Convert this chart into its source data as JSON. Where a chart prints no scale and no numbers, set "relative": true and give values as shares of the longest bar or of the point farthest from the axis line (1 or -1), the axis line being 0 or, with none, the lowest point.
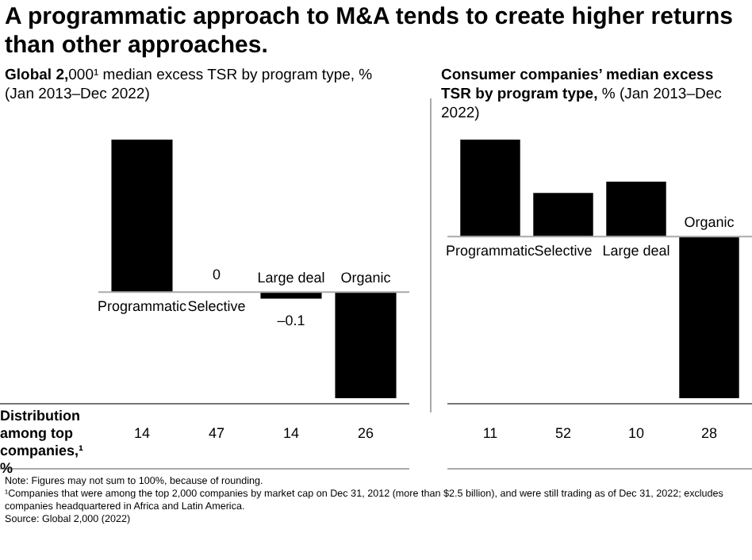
{
  "chart_data": [
    {
      "type": "bar",
      "title": "A programmatic approach to M&A tends to create higher returns than other approaches.",
      "subtitle": "Global 2,000¹ median excess TSR by program type, % (Jan 2013–Dec 2022)",
      "tick_labels": false,
      "categories": [
        "Programmatic",
        "Selective",
        "Large deal",
        "Organic"
      ],
      "values": [
        2.3,
        0,
        -0.1,
        -1.6
      ],
      "value_labels": [
        null,
        "0",
        "–0.1",
        null
      ],
      "color": "#000000",
      "annotations": [
        "Distribution among top companies,¹ %",
        "14",
        "47",
        "14",
        "26",
        "Note: Figures may not sum to 100%, because of rounding.",
        "¹Companies that were among the top 2,000 companies by market cap on Dec 31, 2012 (more than $2.5 billion), and were still trading as of Dec 31, 2022; excludes companies headquartered in Africa and Latin America.",
        "Source: Global 2,000 (2022)"
      ]
    },
    {
      "type": "bar",
      "title": "Consumer companies’ median excess TSR by program type, % (Jan 2013–Dec 2022)",
      "relative": true,
      "categories": [
        "Programmatic",
        "Selective",
        "Large deal",
        "Organic"
      ],
      "values": [
        0.6,
        0.27,
        0.34,
        -1
      ],
      "color": "#000000",
      "annotations": [
        "11",
        "52",
        "10",
        "28"
      ]
    }
  ]
}
